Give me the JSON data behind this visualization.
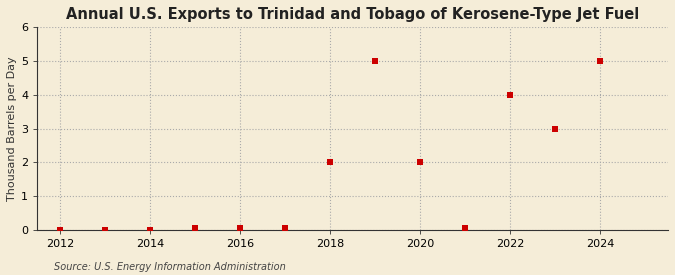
{
  "title": "Annual U.S. Exports to Trinidad and Tobago of Kerosene-Type Jet Fuel",
  "ylabel": "Thousand Barrels per Day",
  "source": "Source: U.S. Energy Information Administration",
  "background_color": "#f5edd8",
  "plot_bg_color": "#f5edd8",
  "years": [
    2012,
    2013,
    2014,
    2015,
    2016,
    2017,
    2018,
    2019,
    2020,
    2021,
    2022,
    2023,
    2024
  ],
  "values": [
    0,
    0,
    0,
    0.05,
    0.05,
    0.05,
    2,
    5,
    2,
    0.05,
    4,
    3,
    5
  ],
  "xlim": [
    2011.5,
    2025.5
  ],
  "ylim": [
    0,
    6
  ],
  "yticks": [
    0,
    1,
    2,
    3,
    4,
    5,
    6
  ],
  "xticks": [
    2012,
    2014,
    2016,
    2018,
    2020,
    2022,
    2024
  ],
  "marker_color": "#cc0000",
  "marker_size": 4,
  "grid_color": "#aaaaaa",
  "title_fontsize": 10.5,
  "label_fontsize": 8,
  "tick_fontsize": 8,
  "source_fontsize": 7
}
